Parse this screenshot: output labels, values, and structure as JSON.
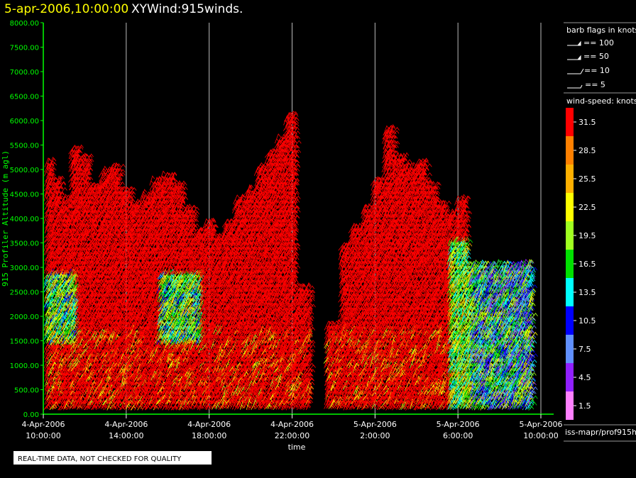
{
  "header": {
    "timestamp": "5-apr-2006,10:00:00",
    "title": "XYWind:915winds."
  },
  "footer": {
    "note": "REAL-TIME DATA, NOT CHECKED FOR QUALITY",
    "source": "iss-mapr/prof915h"
  },
  "barb_legend": {
    "title": "barb flags in knots",
    "items": [
      "== 100",
      "== 50",
      "== 10",
      "== 5"
    ]
  },
  "colors": {
    "axis": "#00ff00",
    "gridline": "#bbbbbb",
    "background": "#000000"
  },
  "chart_data": {
    "type": "scatter",
    "subtype": "wind-barb time-height",
    "title": "XYWind:915winds.",
    "xlabel": "time",
    "ylabel": "915 Profiler Altitude (m agl)",
    "ylim": [
      0,
      8000
    ],
    "yticks": [
      "0.00",
      "500.00",
      "1000.00",
      "1500.00",
      "2000.00",
      "2500.00",
      "3000.00",
      "3500.00",
      "4000.00",
      "4500.00",
      "5000.00",
      "5500.00",
      "6000.00",
      "6500.00",
      "7000.00",
      "7500.00",
      "8000.00"
    ],
    "xticks": [
      {
        "date": "4-Apr-2006",
        "time": "10:00:00"
      },
      {
        "date": "4-Apr-2006",
        "time": "14:00:00"
      },
      {
        "date": "4-Apr-2006",
        "time": "18:00:00"
      },
      {
        "date": "4-Apr-2006",
        "time": "22:00:00"
      },
      {
        "date": "5-Apr-2006",
        "time": "2:00:00"
      },
      {
        "date": "5-Apr-2006",
        "time": "6:00:00"
      },
      {
        "date": "5-Apr-2006",
        "time": "10:00:00"
      }
    ],
    "grid": "vertical",
    "colorbar": {
      "title": "wind-speed: knots",
      "levels": [
        {
          "value": "31.5",
          "color": "#ff0000"
        },
        {
          "value": "28.5",
          "color": "#ff8000"
        },
        {
          "value": "25.5",
          "color": "#ffb000"
        },
        {
          "value": "22.5",
          "color": "#ffff00"
        },
        {
          "value": "19.5",
          "color": "#a0ff20"
        },
        {
          "value": "16.5",
          "color": "#00e000"
        },
        {
          "value": "13.5",
          "color": "#00ffff"
        },
        {
          "value": "10.5",
          "color": "#0000ff"
        },
        {
          "value": "7.5",
          "color": "#6090ff"
        },
        {
          "value": "4.5",
          "color": "#9020ff"
        },
        {
          "value": "1.5",
          "color": "#ff80ff"
        }
      ]
    },
    "profile_tops": [
      {
        "hours": 0.1,
        "top": 5050
      },
      {
        "hours": 0.6,
        "top": 4700
      },
      {
        "hours": 1.0,
        "top": 4300
      },
      {
        "hours": 1.4,
        "top": 5350
      },
      {
        "hours": 1.9,
        "top": 5200
      },
      {
        "hours": 2.4,
        "top": 4600
      },
      {
        "hours": 2.9,
        "top": 4900
      },
      {
        "hours": 3.3,
        "top": 5000
      },
      {
        "hours": 3.9,
        "top": 4500
      },
      {
        "hours": 4.4,
        "top": 4200
      },
      {
        "hours": 4.9,
        "top": 4400
      },
      {
        "hours": 5.4,
        "top": 4700
      },
      {
        "hours": 5.9,
        "top": 4800
      },
      {
        "hours": 6.4,
        "top": 4600
      },
      {
        "hours": 6.9,
        "top": 4100
      },
      {
        "hours": 7.4,
        "top": 3700
      },
      {
        "hours": 7.9,
        "top": 3900
      },
      {
        "hours": 8.4,
        "top": 3600
      },
      {
        "hours": 8.9,
        "top": 3900
      },
      {
        "hours": 9.4,
        "top": 4300
      },
      {
        "hours": 9.9,
        "top": 4500
      },
      {
        "hours": 10.4,
        "top": 5000
      },
      {
        "hours": 10.9,
        "top": 5300
      },
      {
        "hours": 11.4,
        "top": 5600
      },
      {
        "hours": 11.8,
        "top": 6000
      },
      {
        "hours": 12.3,
        "top": 2500
      },
      {
        "hours": 14.0,
        "top": 1800
      },
      {
        "hours": 14.5,
        "top": 3400
      },
      {
        "hours": 15.0,
        "top": 3800
      },
      {
        "hours": 15.5,
        "top": 4100
      },
      {
        "hours": 16.0,
        "top": 4700
      },
      {
        "hours": 16.6,
        "top": 5800
      },
      {
        "hours": 17.1,
        "top": 5200
      },
      {
        "hours": 17.6,
        "top": 5000
      },
      {
        "hours": 18.1,
        "top": 5100
      },
      {
        "hours": 18.6,
        "top": 4600
      },
      {
        "hours": 19.1,
        "top": 4200
      },
      {
        "hours": 19.6,
        "top": 4000
      },
      {
        "hours": 20.1,
        "top": 4300
      },
      {
        "hours": 20.6,
        "top": 3800
      },
      {
        "hours": 21.1,
        "top": 4000
      },
      {
        "hours": 21.6,
        "top": 4500
      },
      {
        "hours": 22.0,
        "top": 4800
      },
      {
        "hours": 22.4,
        "top": 5400
      },
      {
        "hours": 22.8,
        "top": 4600
      },
      {
        "hours": 23.2,
        "top": 4000
      }
    ]
  }
}
